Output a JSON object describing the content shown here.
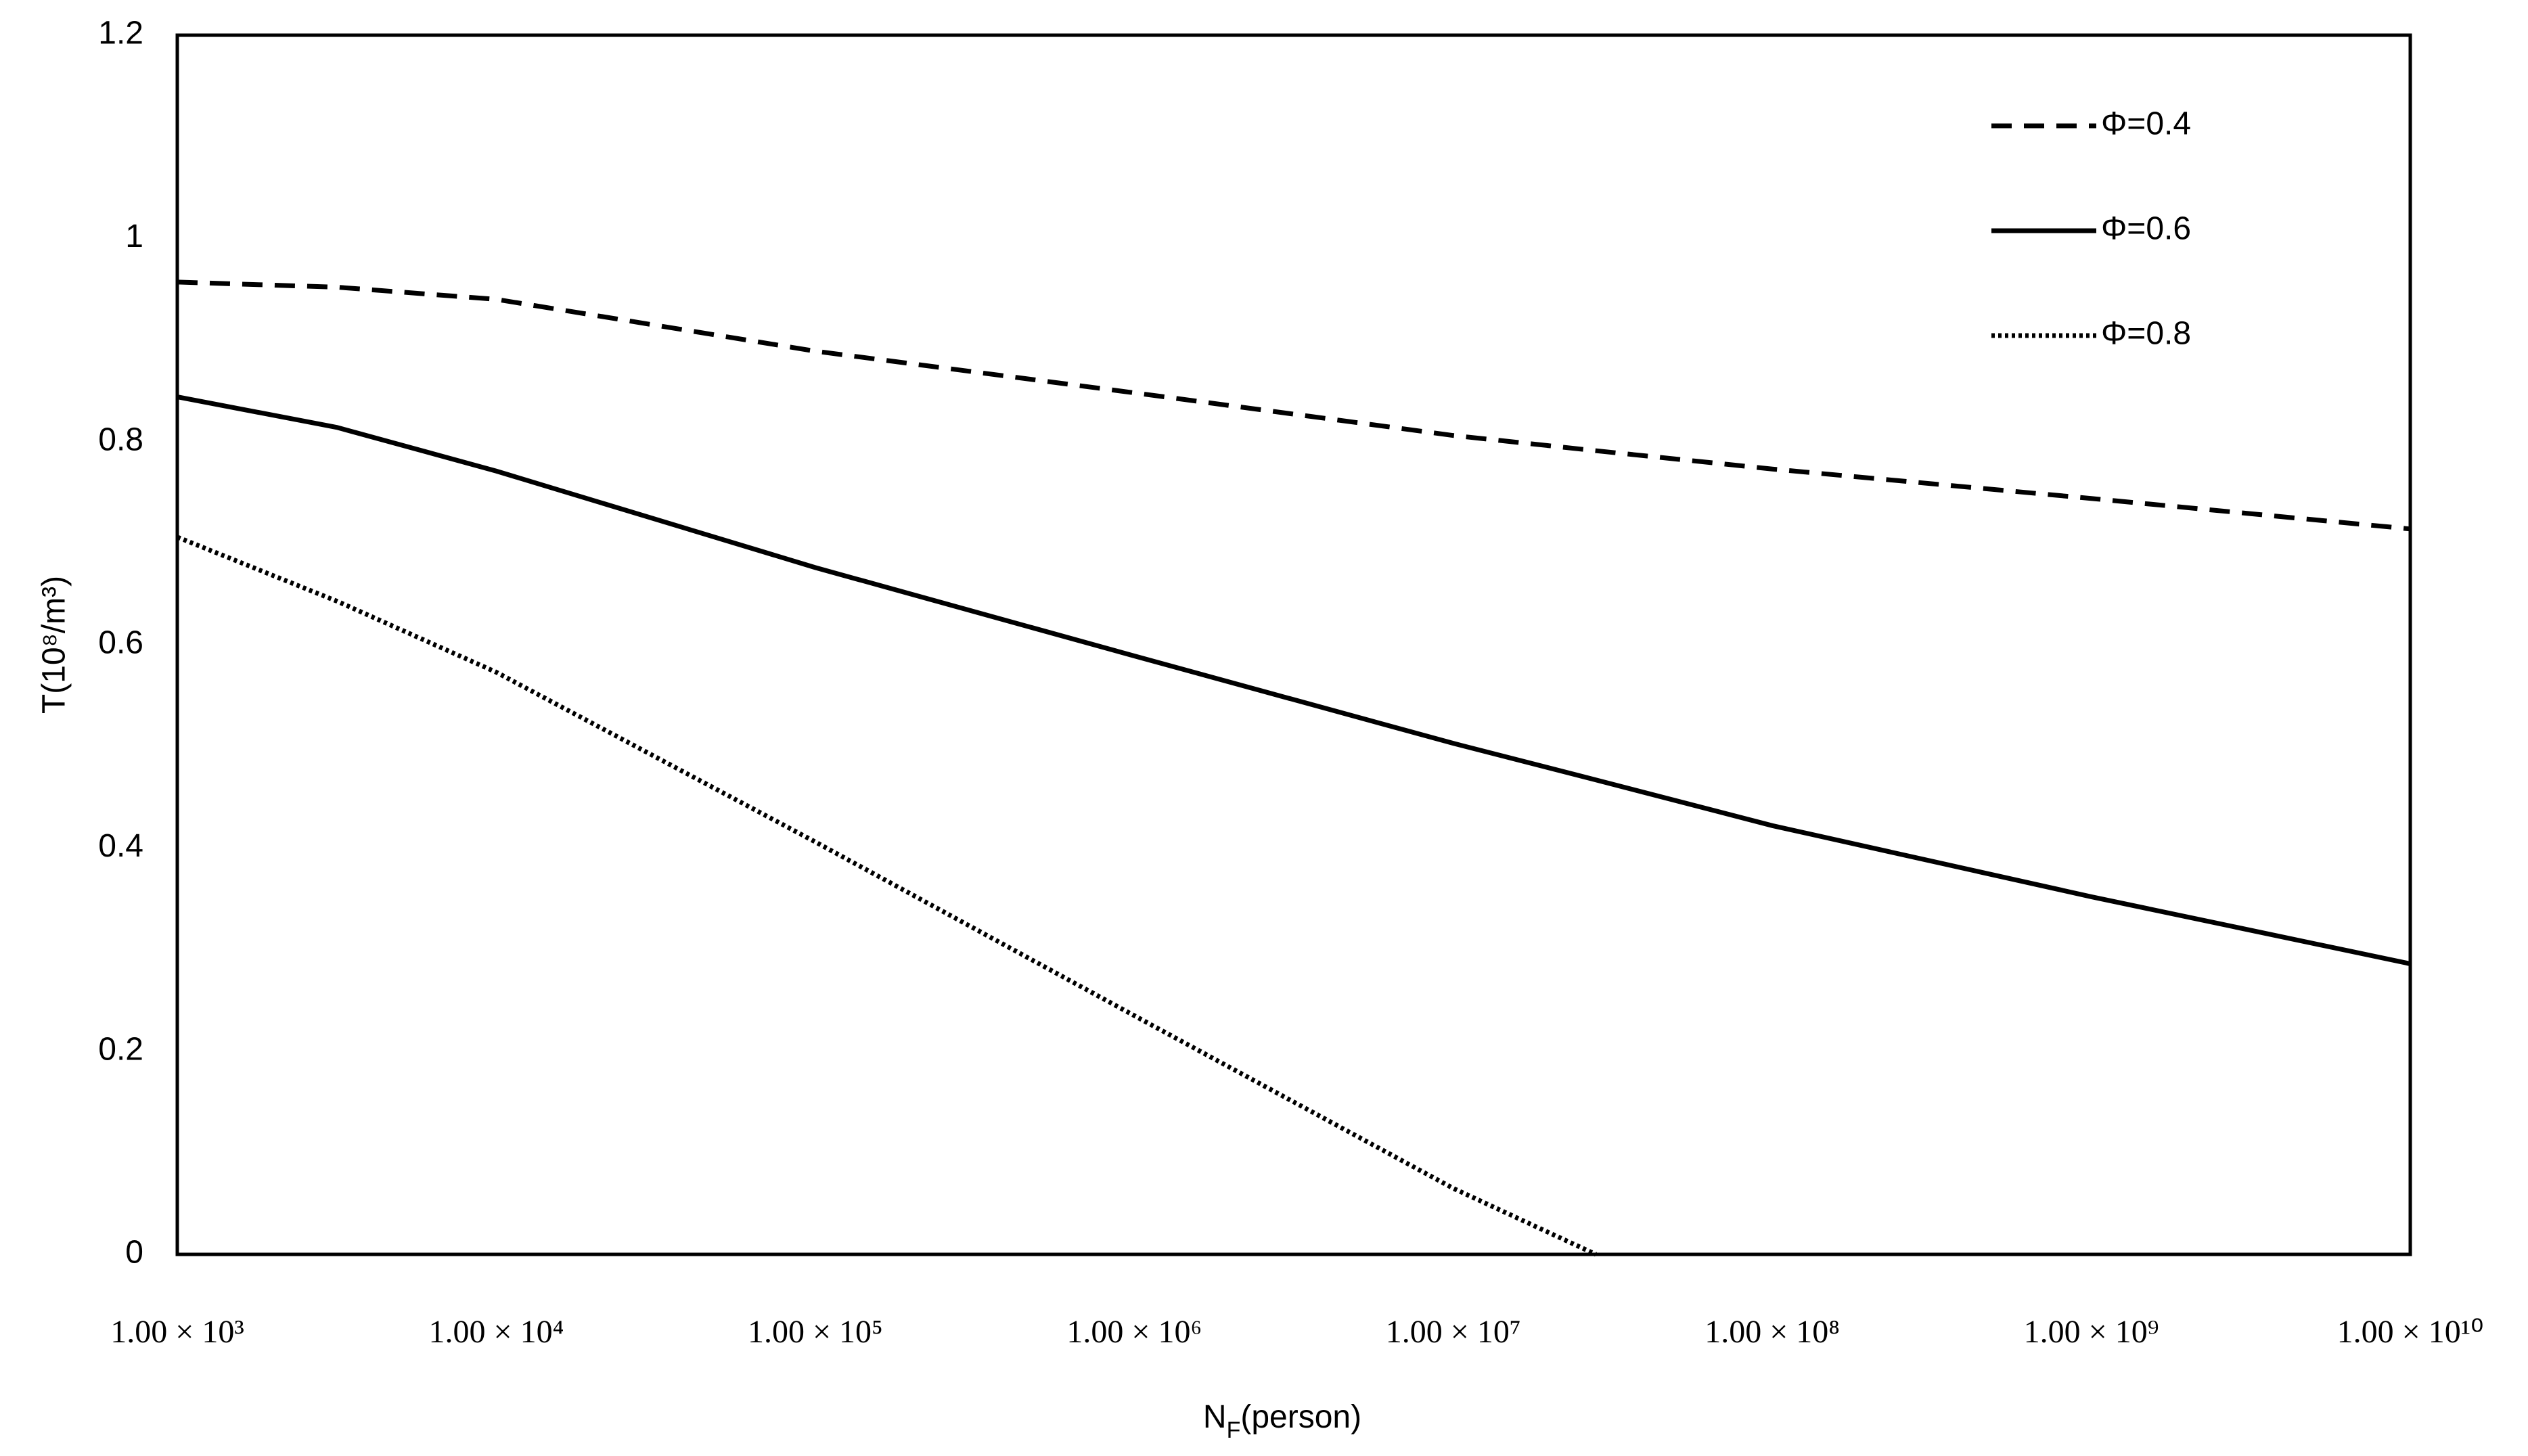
{
  "chart_data": {
    "type": "line",
    "y_label": "T(10⁸/m³)",
    "x_label": [
      {
        "text": "N"
      },
      {
        "text": "F",
        "sub": true
      },
      {
        "text": "(person)"
      }
    ],
    "x": [
      1000,
      3162,
      10000,
      100000,
      1000000,
      10000000,
      28000000,
      100000000,
      1000000000,
      10000000000
    ],
    "series": [
      {
        "name": "Φ=0.4",
        "color": "#000000",
        "dash": "dashed",
        "values": [
          0.957,
          0.952,
          0.94,
          0.889,
          0.848,
          0.806,
          0.791,
          0.773,
          0.744,
          0.714
        ]
      },
      {
        "name": "Φ=0.6",
        "color": "#000000",
        "dash": "solid",
        "values": [
          0.844,
          0.814,
          0.771,
          0.676,
          0.589,
          0.503,
          0.467,
          0.422,
          0.352,
          0.286
        ]
      },
      {
        "name": "Φ=0.8",
        "color": "#000000",
        "dash": "dotted",
        "values": [
          0.706,
          0.643,
          0.573,
          0.406,
          0.235,
          0.065,
          0,
          null,
          null,
          null
        ]
      }
    ],
    "xscale": "log",
    "xlim": [
      1000,
      10000000000
    ],
    "xticks": [
      {
        "value": 1000,
        "label": "1.00 × 10³"
      },
      {
        "value": 10000,
        "label": "1.00 × 10⁴"
      },
      {
        "value": 100000,
        "label": "1.00 × 10⁵"
      },
      {
        "value": 1000000,
        "label": "1.00 × 10⁶"
      },
      {
        "value": 10000000,
        "label": "1.00 × 10⁷"
      },
      {
        "value": 100000000,
        "label": "1.00 × 10⁸"
      },
      {
        "value": 1000000000,
        "label": "1.00 × 10⁹"
      },
      {
        "value": 10000000000,
        "label": "1.00 × 10¹⁰"
      }
    ],
    "ylim": [
      0,
      1.2
    ],
    "yticks": [
      0,
      0.2,
      0.4,
      0.6,
      0.8,
      1,
      1.2
    ],
    "grid": false,
    "legend": "upper right"
  }
}
